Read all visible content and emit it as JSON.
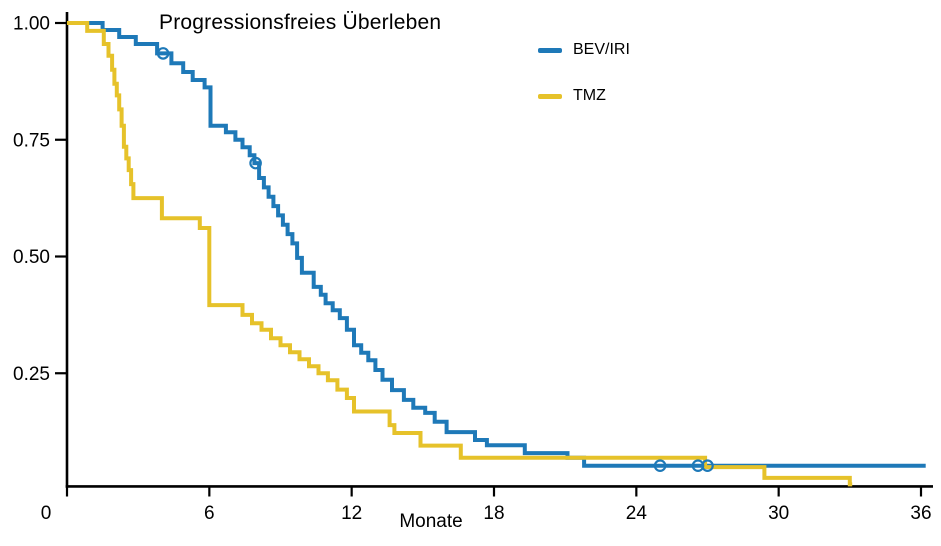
{
  "title": "Progressionsfreies Überleben",
  "x_axis_label": "Monate",
  "legend": {
    "position": "upper-center",
    "items": [
      {
        "label": "BEV/IRI",
        "color": "#1e79b8"
      },
      {
        "label": "TMZ",
        "color": "#e6c22a"
      }
    ]
  },
  "chart_data": {
    "type": "line",
    "variant": "kaplan_meier_step",
    "title": "Progressionsfreies Überleben",
    "xlabel": "Monate",
    "ylabel": "",
    "xlim": [
      0,
      36
    ],
    "ylim": [
      0,
      1.0
    ],
    "xticks": [
      0,
      6,
      12,
      18,
      24,
      30,
      36
    ],
    "xtick_labels": [
      "0",
      "6",
      "12",
      "18",
      "24",
      "30",
      "36"
    ],
    "yticks": [
      1.0,
      0.75,
      0.5,
      0.25
    ],
    "ytick_labels": [
      "1.00",
      "0.75",
      "0.50",
      "0.25"
    ],
    "grid": false,
    "axis_color": "#000000",
    "series": [
      {
        "name": "BEV/IRI",
        "color": "#1e79b8",
        "steps": [
          [
            0,
            1.0
          ],
          [
            1.5,
            0.985
          ],
          [
            2.2,
            0.97
          ],
          [
            2.9,
            0.955
          ],
          [
            3.8,
            0.935
          ],
          [
            4.4,
            0.914
          ],
          [
            4.9,
            0.895
          ],
          [
            5.3,
            0.878
          ],
          [
            5.8,
            0.862
          ],
          [
            6.05,
            0.78
          ],
          [
            6.7,
            0.766
          ],
          [
            7.1,
            0.75
          ],
          [
            7.4,
            0.734
          ],
          [
            7.7,
            0.717
          ],
          [
            7.9,
            0.7
          ],
          [
            8.1,
            0.668
          ],
          [
            8.3,
            0.648
          ],
          [
            8.5,
            0.628
          ],
          [
            8.7,
            0.608
          ],
          [
            8.9,
            0.588
          ],
          [
            9.1,
            0.568
          ],
          [
            9.3,
            0.548
          ],
          [
            9.5,
            0.528
          ],
          [
            9.7,
            0.497
          ],
          [
            9.9,
            0.465
          ],
          [
            10.4,
            0.435
          ],
          [
            10.7,
            0.418
          ],
          [
            10.9,
            0.4
          ],
          [
            11.2,
            0.385
          ],
          [
            11.5,
            0.368
          ],
          [
            11.8,
            0.343
          ],
          [
            12.1,
            0.31
          ],
          [
            12.4,
            0.294
          ],
          [
            12.7,
            0.278
          ],
          [
            13.0,
            0.257
          ],
          [
            13.3,
            0.236
          ],
          [
            13.7,
            0.214
          ],
          [
            14.2,
            0.193
          ],
          [
            14.6,
            0.176
          ],
          [
            15.1,
            0.165
          ],
          [
            15.5,
            0.146
          ],
          [
            16.0,
            0.124
          ],
          [
            17.2,
            0.107
          ],
          [
            17.7,
            0.096
          ],
          [
            19.3,
            0.079
          ],
          [
            21.1,
            0.069
          ],
          [
            21.8,
            0.052
          ]
        ],
        "end_month": 36.2,
        "censor_marks": [
          [
            4.05,
            0.935
          ],
          [
            7.95,
            0.7
          ],
          [
            25.0,
            0.052
          ],
          [
            26.6,
            0.052
          ],
          [
            27.0,
            0.052
          ]
        ]
      },
      {
        "name": "TMZ",
        "color": "#e6c22a",
        "steps": [
          [
            0,
            1.0
          ],
          [
            0.85,
            0.983
          ],
          [
            1.55,
            0.955
          ],
          [
            1.75,
            0.93
          ],
          [
            1.9,
            0.9
          ],
          [
            2.0,
            0.87
          ],
          [
            2.1,
            0.845
          ],
          [
            2.2,
            0.815
          ],
          [
            2.3,
            0.78
          ],
          [
            2.4,
            0.735
          ],
          [
            2.5,
            0.71
          ],
          [
            2.6,
            0.685
          ],
          [
            2.7,
            0.655
          ],
          [
            2.8,
            0.625
          ],
          [
            4.0,
            0.582
          ],
          [
            5.6,
            0.561
          ],
          [
            6.0,
            0.396
          ],
          [
            7.4,
            0.375
          ],
          [
            7.8,
            0.357
          ],
          [
            8.2,
            0.343
          ],
          [
            8.6,
            0.325
          ],
          [
            9.0,
            0.31
          ],
          [
            9.4,
            0.295
          ],
          [
            9.8,
            0.28
          ],
          [
            10.2,
            0.265
          ],
          [
            10.6,
            0.25
          ],
          [
            11.0,
            0.235
          ],
          [
            11.4,
            0.215
          ],
          [
            11.8,
            0.197
          ],
          [
            12.1,
            0.168
          ],
          [
            13.6,
            0.139
          ],
          [
            13.8,
            0.122
          ],
          [
            14.9,
            0.095
          ],
          [
            16.6,
            0.069
          ],
          [
            26.9,
            0.049
          ],
          [
            29.4,
            0.026
          ],
          [
            33.0,
            0.012
          ]
        ],
        "end_month": 33.1,
        "censor_marks": []
      }
    ]
  }
}
